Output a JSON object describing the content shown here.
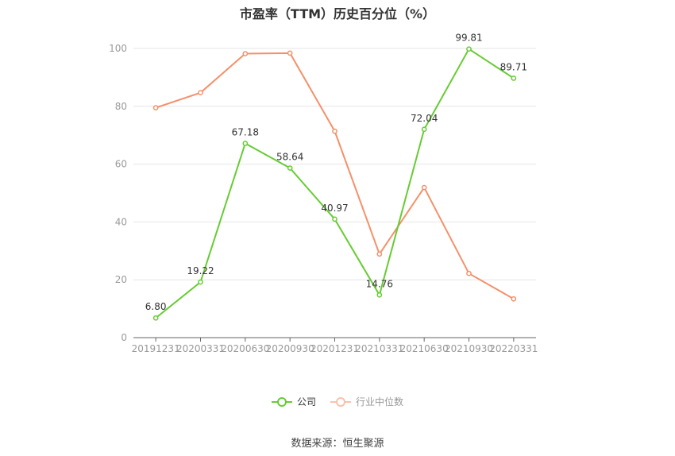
{
  "chart_data": {
    "type": "line",
    "title": "市盈率（TTM）历史百分位（%）",
    "categories": [
      "20191231",
      "20200331",
      "20200630",
      "20200930",
      "20201231",
      "20210331",
      "20210630",
      "20210930",
      "20220331"
    ],
    "y_ticks": [
      0,
      20,
      40,
      60,
      80,
      100
    ],
    "ylim": [
      0,
      100
    ],
    "grid": true,
    "legend_position": "bottom",
    "series": [
      {
        "name": "公司",
        "color": "#66cc33",
        "values": [
          6.8,
          19.22,
          67.18,
          58.64,
          40.97,
          14.76,
          72.04,
          99.81,
          89.71
        ],
        "labels": [
          "6.80",
          "19.22",
          "67.18",
          "58.64",
          "40.97",
          "14.76",
          "72.04",
          "99.81",
          "89.71"
        ]
      },
      {
        "name": "行业中位数",
        "color": "#f4916a",
        "values": [
          79.5,
          84.7,
          98.2,
          98.4,
          71.4,
          28.9,
          51.9,
          22.2,
          13.4
        ]
      }
    ],
    "source": "数据来源：恒生聚源"
  }
}
